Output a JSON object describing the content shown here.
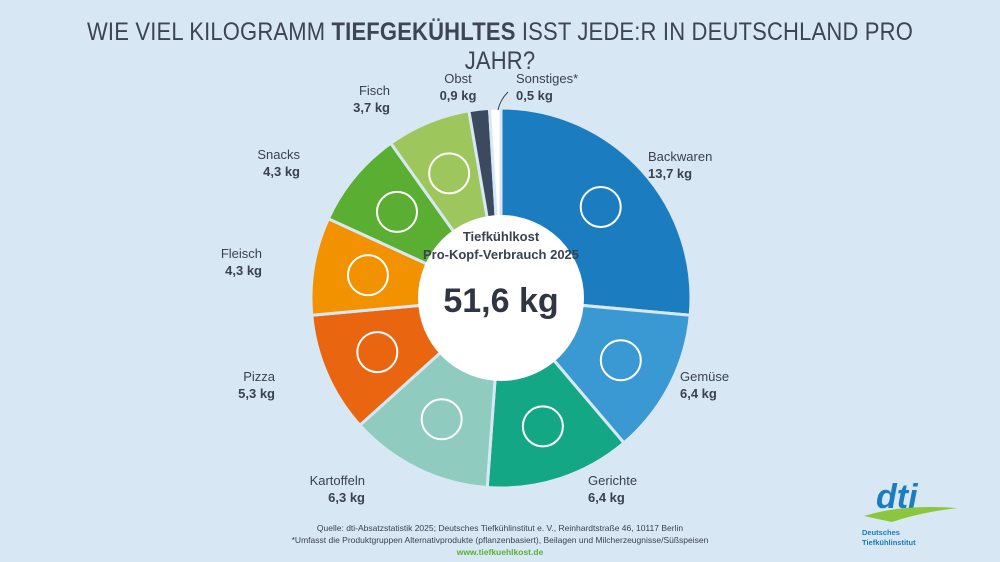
{
  "title": {
    "pre": "WIE VIEL KILOGRAMM ",
    "bold": "TIEFGEKÜHLTES",
    "post": " ISST JEDE:R IN DEUTSCHLAND PRO JAHR?"
  },
  "chart_data": {
    "type": "pie",
    "donut": true,
    "unit": "kg",
    "center": {
      "line1": "Tiefkühlkost",
      "line2": "Pro-Kopf-Verbrauch 2025",
      "total": "51,6 kg"
    },
    "slices": [
      {
        "name": "Backwaren",
        "value": 13.7,
        "label": "13,7 kg",
        "color": "#1b7dbf",
        "icon": "bread-cake-icon"
      },
      {
        "name": "Gemüse",
        "value": 6.4,
        "label": "6,4 kg",
        "color": "#3a98d3",
        "icon": "carrot-icon"
      },
      {
        "name": "Gerichte",
        "value": 6.4,
        "label": "6,4 kg",
        "color": "#14a785",
        "icon": "plate-cutlery-icon"
      },
      {
        "name": "Kartoffeln",
        "value": 6.3,
        "label": "6,3 kg",
        "color": "#8fcbbf",
        "icon": "fries-icon"
      },
      {
        "name": "Pizza",
        "value": 5.3,
        "label": "5,3 kg",
        "color": "#ea6510",
        "icon": "pizza-icon"
      },
      {
        "name": "Fleisch",
        "value": 4.3,
        "label": "4,3 kg",
        "color": "#f39200",
        "icon": "drumstick-icon"
      },
      {
        "name": "Snacks",
        "value": 4.3,
        "label": "4,3 kg",
        "color": "#5aae31",
        "icon": "burger-icon"
      },
      {
        "name": "Fisch",
        "value": 3.7,
        "label": "3,7 kg",
        "color": "#9dc65c",
        "icon": "fish-icon"
      },
      {
        "name": "Obst",
        "value": 0.9,
        "label": "0,9 kg",
        "color": "#3b4a5f",
        "icon": ""
      },
      {
        "name": "Sonstiges*",
        "value": 0.5,
        "label": "0,5 kg",
        "color": "#ffffff",
        "icon": ""
      }
    ]
  },
  "footer": {
    "source": "Quelle: dti-Absatzstatistik 2025; Deutsches Tiefkühlinstitut e. V., Reinhardtstraße 46, 10117 Berlin",
    "note": "*Umfasst die Produktgruppen Alternativprodukte (pflanzenbasiert), Beilagen und Milcherzeugnisse/Süßspeisen",
    "url": "www.tiefkuehlkost.de"
  },
  "logo": {
    "text": "dti",
    "line1": "Deutsches",
    "line2": "Tiefkühlinstitut"
  }
}
